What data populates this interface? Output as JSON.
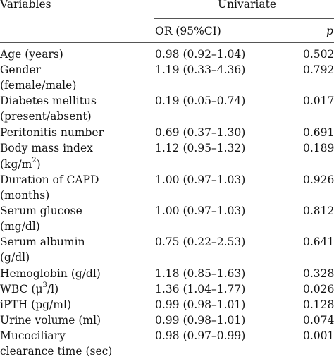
{
  "table": {
    "header": {
      "variables": "Variables",
      "univariate": "Univariate",
      "or_ci": "OR (95%CI)",
      "p": "p"
    },
    "rows": [
      {
        "lines": [
          "Age (years)"
        ],
        "or_ci": "0.98 (0.92–1.04)",
        "p": "0.502"
      },
      {
        "lines": [
          "Gender",
          "(female/male)"
        ],
        "or_ci": "1.19 (0.33–4.36)",
        "p": "0.792"
      },
      {
        "lines": [
          "Diabetes mellitus",
          "(present/absent)"
        ],
        "or_ci": "0.19 (0.05–0.74)",
        "p": "0.017"
      },
      {
        "lines": [
          "Peritonitis number"
        ],
        "or_ci": "0.69 (0.37–1.30)",
        "p": "0.691"
      },
      {
        "lines": [
          "Body mass index",
          "(kg/m²)"
        ],
        "or_ci": "1.12 (0.95–1.32)",
        "p": "0.189"
      },
      {
        "lines": [
          "Duration of CAPD",
          "(months)"
        ],
        "or_ci": "1.00 (0.97–1.03)",
        "p": "0.926"
      },
      {
        "lines": [
          "Serum glucose",
          "(mg/dl)"
        ],
        "or_ci": "1.00 (0.97–1.03)",
        "p": "0.812"
      },
      {
        "lines": [
          "Serum albumin",
          "(g/dl)"
        ],
        "or_ci": "0.75 (0.22–2.53)",
        "p": "0.641"
      },
      {
        "lines": [
          "Hemoglobin (g/dl)"
        ],
        "or_ci": "1.18 (0.85–1.63)",
        "p": "0.328"
      },
      {
        "lines": [
          "WBC (μ³/l)"
        ],
        "or_ci": "1.36 (1.04–1.77)",
        "p": "0.026"
      },
      {
        "lines": [
          "iPTH (pg/ml)"
        ],
        "or_ci": "0.99 (0.98–1.01)",
        "p": "0.128"
      },
      {
        "lines": [
          "Urine volume (ml)"
        ],
        "or_ci": "0.99 (0.98–1.01)",
        "p": "0.074"
      },
      {
        "lines": [
          "Mucociliary",
          "clearance time (sec)"
        ],
        "or_ci": "0.98 (0.97–0.99)",
        "p": "0.001"
      }
    ]
  }
}
